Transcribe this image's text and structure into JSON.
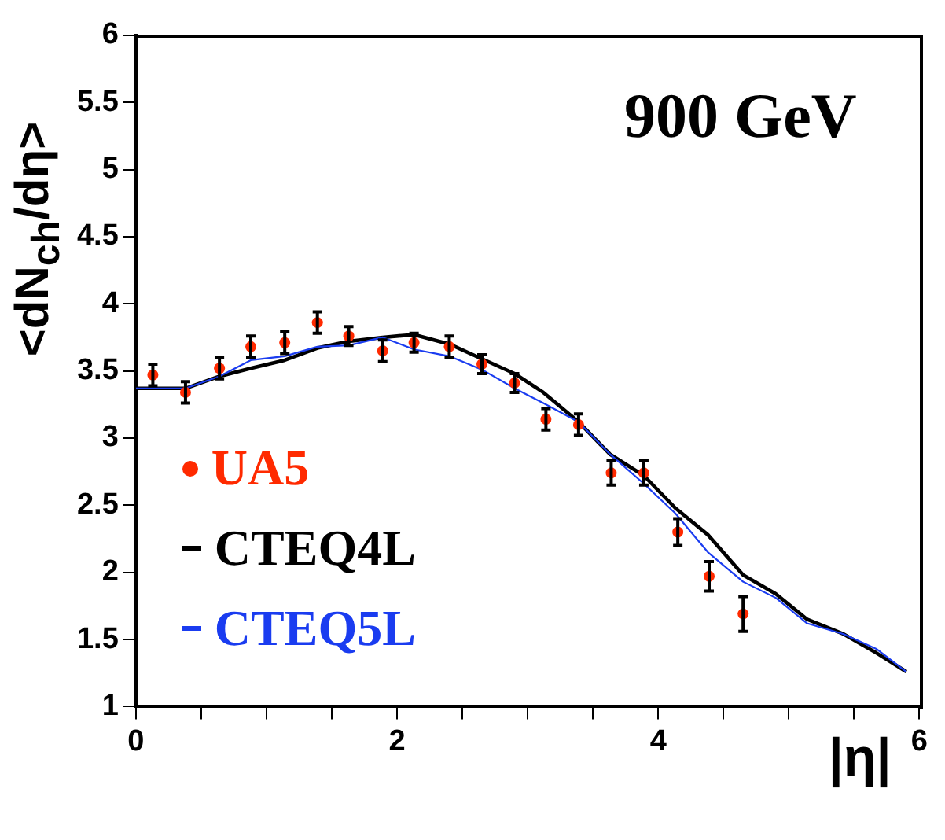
{
  "chart_data": {
    "type": "line",
    "title": "900 GeV",
    "xlabel": "|η|",
    "ylabel": "<dN$_{ch}$/dη>",
    "xlim": [
      0,
      6
    ],
    "ylim": [
      1,
      6
    ],
    "xticks": [
      0,
      {
        "value": 0.5,
        "label": null
      },
      {
        "value": 1,
        "label": null
      },
      {
        "value": 1.5,
        "label": null
      },
      2,
      {
        "value": 2.5,
        "label": null
      },
      {
        "value": 3,
        "label": null
      },
      {
        "value": 3.5,
        "label": null
      },
      4,
      {
        "value": 4.5,
        "label": null
      },
      {
        "value": 5,
        "label": null
      },
      {
        "value": 5.5,
        "label": null
      },
      6
    ],
    "yticks": [
      1,
      1.5,
      2,
      2.5,
      3,
      3.5,
      4,
      4.5,
      5,
      5.5,
      6
    ],
    "grid": false,
    "legend": "bottom left",
    "series": [
      {
        "name": "UA5",
        "type": "scatter",
        "marker": "circle",
        "color": "#ff2a00",
        "x": [
          0.13,
          0.38,
          0.64,
          0.88,
          1.14,
          1.39,
          1.63,
          1.89,
          2.13,
          2.4,
          2.65,
          2.9,
          3.14,
          3.39,
          3.64,
          3.89,
          4.15,
          4.39,
          4.65
        ],
        "values": [
          3.47,
          3.34,
          3.52,
          3.68,
          3.71,
          3.86,
          3.76,
          3.65,
          3.71,
          3.68,
          3.55,
          3.41,
          3.14,
          3.1,
          2.74,
          2.74,
          2.3,
          1.97,
          1.69
        ],
        "errors": [
          0.08,
          0.08,
          0.08,
          0.08,
          0.08,
          0.08,
          0.07,
          0.08,
          0.07,
          0.08,
          0.07,
          0.07,
          0.08,
          0.08,
          0.09,
          0.09,
          0.1,
          0.11,
          0.13
        ]
      },
      {
        "name": "CTEQ4L",
        "type": "line",
        "marker": "none",
        "color": "#000000",
        "x": [
          0,
          0.13,
          0.38,
          0.64,
          0.88,
          1.14,
          1.39,
          1.63,
          1.89,
          2.13,
          2.4,
          2.65,
          2.9,
          3.12,
          3.39,
          3.63,
          3.89,
          4.13,
          4.38,
          4.65,
          4.9,
          5.14,
          5.42,
          5.67,
          5.9
        ],
        "values": [
          3.37,
          3.37,
          3.37,
          3.46,
          3.52,
          3.58,
          3.67,
          3.72,
          3.75,
          3.77,
          3.7,
          3.59,
          3.48,
          3.34,
          3.12,
          2.88,
          2.72,
          2.48,
          2.28,
          1.98,
          1.84,
          1.65,
          1.54,
          1.4,
          1.26
        ]
      },
      {
        "name": "CTEQ5L",
        "type": "line",
        "marker": "none",
        "color": "#1a3cf0",
        "x": [
          0,
          0.13,
          0.38,
          0.64,
          0.88,
          1.14,
          1.39,
          1.63,
          1.89,
          2.13,
          2.4,
          2.65,
          2.9,
          3.12,
          3.39,
          3.63,
          3.89,
          4.13,
          4.38,
          4.65,
          4.9,
          5.14,
          5.42,
          5.67,
          5.9
        ],
        "values": [
          3.37,
          3.37,
          3.37,
          3.46,
          3.58,
          3.61,
          3.68,
          3.69,
          3.75,
          3.66,
          3.61,
          3.51,
          3.37,
          3.26,
          3.12,
          2.88,
          2.66,
          2.44,
          2.15,
          1.93,
          1.81,
          1.62,
          1.54,
          1.43,
          1.26
        ]
      }
    ]
  }
}
